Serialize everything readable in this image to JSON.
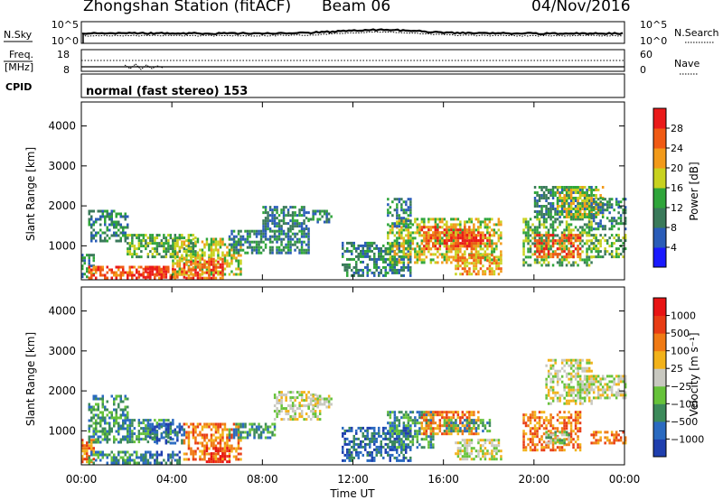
{
  "header": {
    "station_title": "Zhongshan Station (fitACF)",
    "beam": "Beam 06",
    "date": "04/Nov/2016"
  },
  "status_panels": {
    "noise": {
      "left_label": "N.Sky",
      "left_ticks": [
        "10^5",
        "10^0"
      ],
      "right_ticks": [
        "10^5",
        "10^0"
      ],
      "right_label": "N.Search"
    },
    "freq": {
      "left_label_lines": [
        "Freq.",
        "[MHz]"
      ],
      "left_ticks": [
        "18",
        "8"
      ],
      "right_ticks": [
        "60",
        "0"
      ],
      "right_label": "Nave"
    },
    "cpid": {
      "label": "CPID",
      "text": "normal (fast stereo) 153"
    }
  },
  "chart_data": [
    {
      "type": "heatmap",
      "name": "power",
      "ylabel": "Slant Range [km]",
      "y_ticks": [
        "1000",
        "2000",
        "3000",
        "4000"
      ],
      "x_ticks": [
        "00:00",
        "04:00",
        "08:00",
        "12:00",
        "16:00",
        "20:00",
        "00:00"
      ],
      "xlabel": "Time UT",
      "colorbar": {
        "label": "Power [dB]",
        "ticks": [
          "4",
          "8",
          "12",
          "16",
          "20",
          "24",
          "28"
        ],
        "colors": [
          "#1a1aff",
          "#2a5cb8",
          "#3a7a5a",
          "#2fa53a",
          "#c8d21f",
          "#f29a1a",
          "#f05a14",
          "#ea1a1a"
        ]
      },
      "regions": [
        {
          "t0": 0.0,
          "t1": 0.5,
          "r0": 200,
          "r1": 800,
          "level": 2
        },
        {
          "t0": 0.3,
          "t1": 4.2,
          "r0": 200,
          "r1": 500,
          "level": 6
        },
        {
          "t0": 2.5,
          "t1": 4.5,
          "r0": 200,
          "r1": 450,
          "level": 7
        },
        {
          "t0": 4.0,
          "t1": 7.0,
          "r0": 300,
          "r1": 1200,
          "level": 4
        },
        {
          "t0": 4.5,
          "t1": 6.2,
          "r0": 200,
          "r1": 700,
          "level": 6
        },
        {
          "t0": 0.3,
          "t1": 2.0,
          "r0": 1100,
          "r1": 1900,
          "level": 2
        },
        {
          "t0": 2.0,
          "t1": 5.0,
          "r0": 700,
          "r1": 1300,
          "level": 3
        },
        {
          "t0": 6.5,
          "t1": 10.0,
          "r0": 800,
          "r1": 1400,
          "level": 2
        },
        {
          "t0": 8.0,
          "t1": 10.0,
          "r0": 1400,
          "r1": 2000,
          "level": 2
        },
        {
          "t0": 10.0,
          "t1": 11.0,
          "r0": 1600,
          "r1": 1900,
          "level": 2
        },
        {
          "t0": 11.5,
          "t1": 14.5,
          "r0": 250,
          "r1": 1100,
          "level": 2
        },
        {
          "t0": 13.5,
          "t1": 18.5,
          "r0": 600,
          "r1": 1700,
          "level": 4
        },
        {
          "t0": 15.0,
          "t1": 17.5,
          "r0": 900,
          "r1": 1500,
          "level": 6
        },
        {
          "t0": 16.0,
          "t1": 18.0,
          "r0": 1000,
          "r1": 1300,
          "level": 7
        },
        {
          "t0": 16.5,
          "t1": 18.5,
          "r0": 300,
          "r1": 800,
          "level": 5
        },
        {
          "t0": 13.5,
          "t1": 14.5,
          "r0": 1500,
          "r1": 2200,
          "level": 2
        },
        {
          "t0": 19.5,
          "t1": 22.5,
          "r0": 500,
          "r1": 1700,
          "level": 3
        },
        {
          "t0": 20.0,
          "t1": 22.0,
          "r0": 700,
          "r1": 1300,
          "level": 6
        },
        {
          "t0": 20.0,
          "t1": 22.5,
          "r0": 1700,
          "r1": 2500,
          "level": 2
        },
        {
          "t0": 21.0,
          "t1": 23.0,
          "r0": 1700,
          "r1": 2500,
          "level": 4
        },
        {
          "t0": 22.5,
          "t1": 24.0,
          "r0": 700,
          "r1": 1300,
          "level": 3
        },
        {
          "t0": 22.5,
          "t1": 24.0,
          "r0": 1400,
          "r1": 2200,
          "level": 2
        }
      ]
    },
    {
      "type": "heatmap",
      "name": "velocity",
      "ylabel": "Slant Range [km]",
      "y_ticks": [
        "1000",
        "2000",
        "3000",
        "4000"
      ],
      "x_ticks": [
        "00:00",
        "04:00",
        "08:00",
        "12:00",
        "16:00",
        "20:00",
        "00:00"
      ],
      "xlabel": "Time UT",
      "colorbar": {
        "label": "Velocity [m s⁻¹]",
        "ticks": [
          "1000",
          "500",
          "100",
          "25",
          "−25",
          "−100",
          "−500",
          "−1000"
        ],
        "colors": [
          "#1f3fae",
          "#2a6ac0",
          "#3c8a5a",
          "#66c23a",
          "#c8c8c0",
          "#f2b21a",
          "#f07a14",
          "#e83c14",
          "#e81414"
        ]
      },
      "regions": [
        {
          "t0": 0.0,
          "t1": 0.5,
          "r0": 200,
          "r1": 800,
          "level": 6
        },
        {
          "t0": 0.3,
          "t1": 2.8,
          "r0": 200,
          "r1": 500,
          "level": 2
        },
        {
          "t0": 2.5,
          "t1": 4.3,
          "r0": 200,
          "r1": 500,
          "level": 1
        },
        {
          "t0": 0.3,
          "t1": 2.0,
          "r0": 700,
          "r1": 1900,
          "level": 2
        },
        {
          "t0": 2.0,
          "t1": 4.0,
          "r0": 700,
          "r1": 1300,
          "level": 2
        },
        {
          "t0": 3.0,
          "t1": 4.5,
          "r0": 700,
          "r1": 1200,
          "level": 1
        },
        {
          "t0": 4.5,
          "t1": 7.0,
          "r0": 300,
          "r1": 1200,
          "level": 6
        },
        {
          "t0": 5.5,
          "t1": 6.5,
          "r0": 200,
          "r1": 600,
          "level": 8
        },
        {
          "t0": 6.5,
          "t1": 8.5,
          "r0": 800,
          "r1": 1200,
          "level": 2
        },
        {
          "t0": 8.5,
          "t1": 10.5,
          "r0": 1300,
          "r1": 2000,
          "level": 4
        },
        {
          "t0": 10.0,
          "t1": 11.0,
          "r0": 1600,
          "r1": 1900,
          "level": 4
        },
        {
          "t0": 11.5,
          "t1": 14.5,
          "r0": 250,
          "r1": 1100,
          "level": 1
        },
        {
          "t0": 13.5,
          "t1": 15.5,
          "r0": 600,
          "r1": 1500,
          "level": 2
        },
        {
          "t0": 15.0,
          "t1": 17.5,
          "r0": 900,
          "r1": 1500,
          "level": 6
        },
        {
          "t0": 16.0,
          "t1": 18.0,
          "r0": 1000,
          "r1": 1300,
          "level": 2
        },
        {
          "t0": 16.5,
          "t1": 18.5,
          "r0": 300,
          "r1": 800,
          "level": 4
        },
        {
          "t0": 19.5,
          "t1": 22.0,
          "r0": 500,
          "r1": 1500,
          "level": 6
        },
        {
          "t0": 20.5,
          "t1": 21.5,
          "r0": 700,
          "r1": 1000,
          "level": 3
        },
        {
          "t0": 20.5,
          "t1": 22.5,
          "r0": 1700,
          "r1": 2800,
          "level": 4
        },
        {
          "t0": 22.0,
          "t1": 24.0,
          "r0": 1800,
          "r1": 2400,
          "level": 4
        },
        {
          "t0": 22.5,
          "t1": 24.0,
          "r0": 700,
          "r1": 1000,
          "level": 6
        }
      ]
    }
  ]
}
